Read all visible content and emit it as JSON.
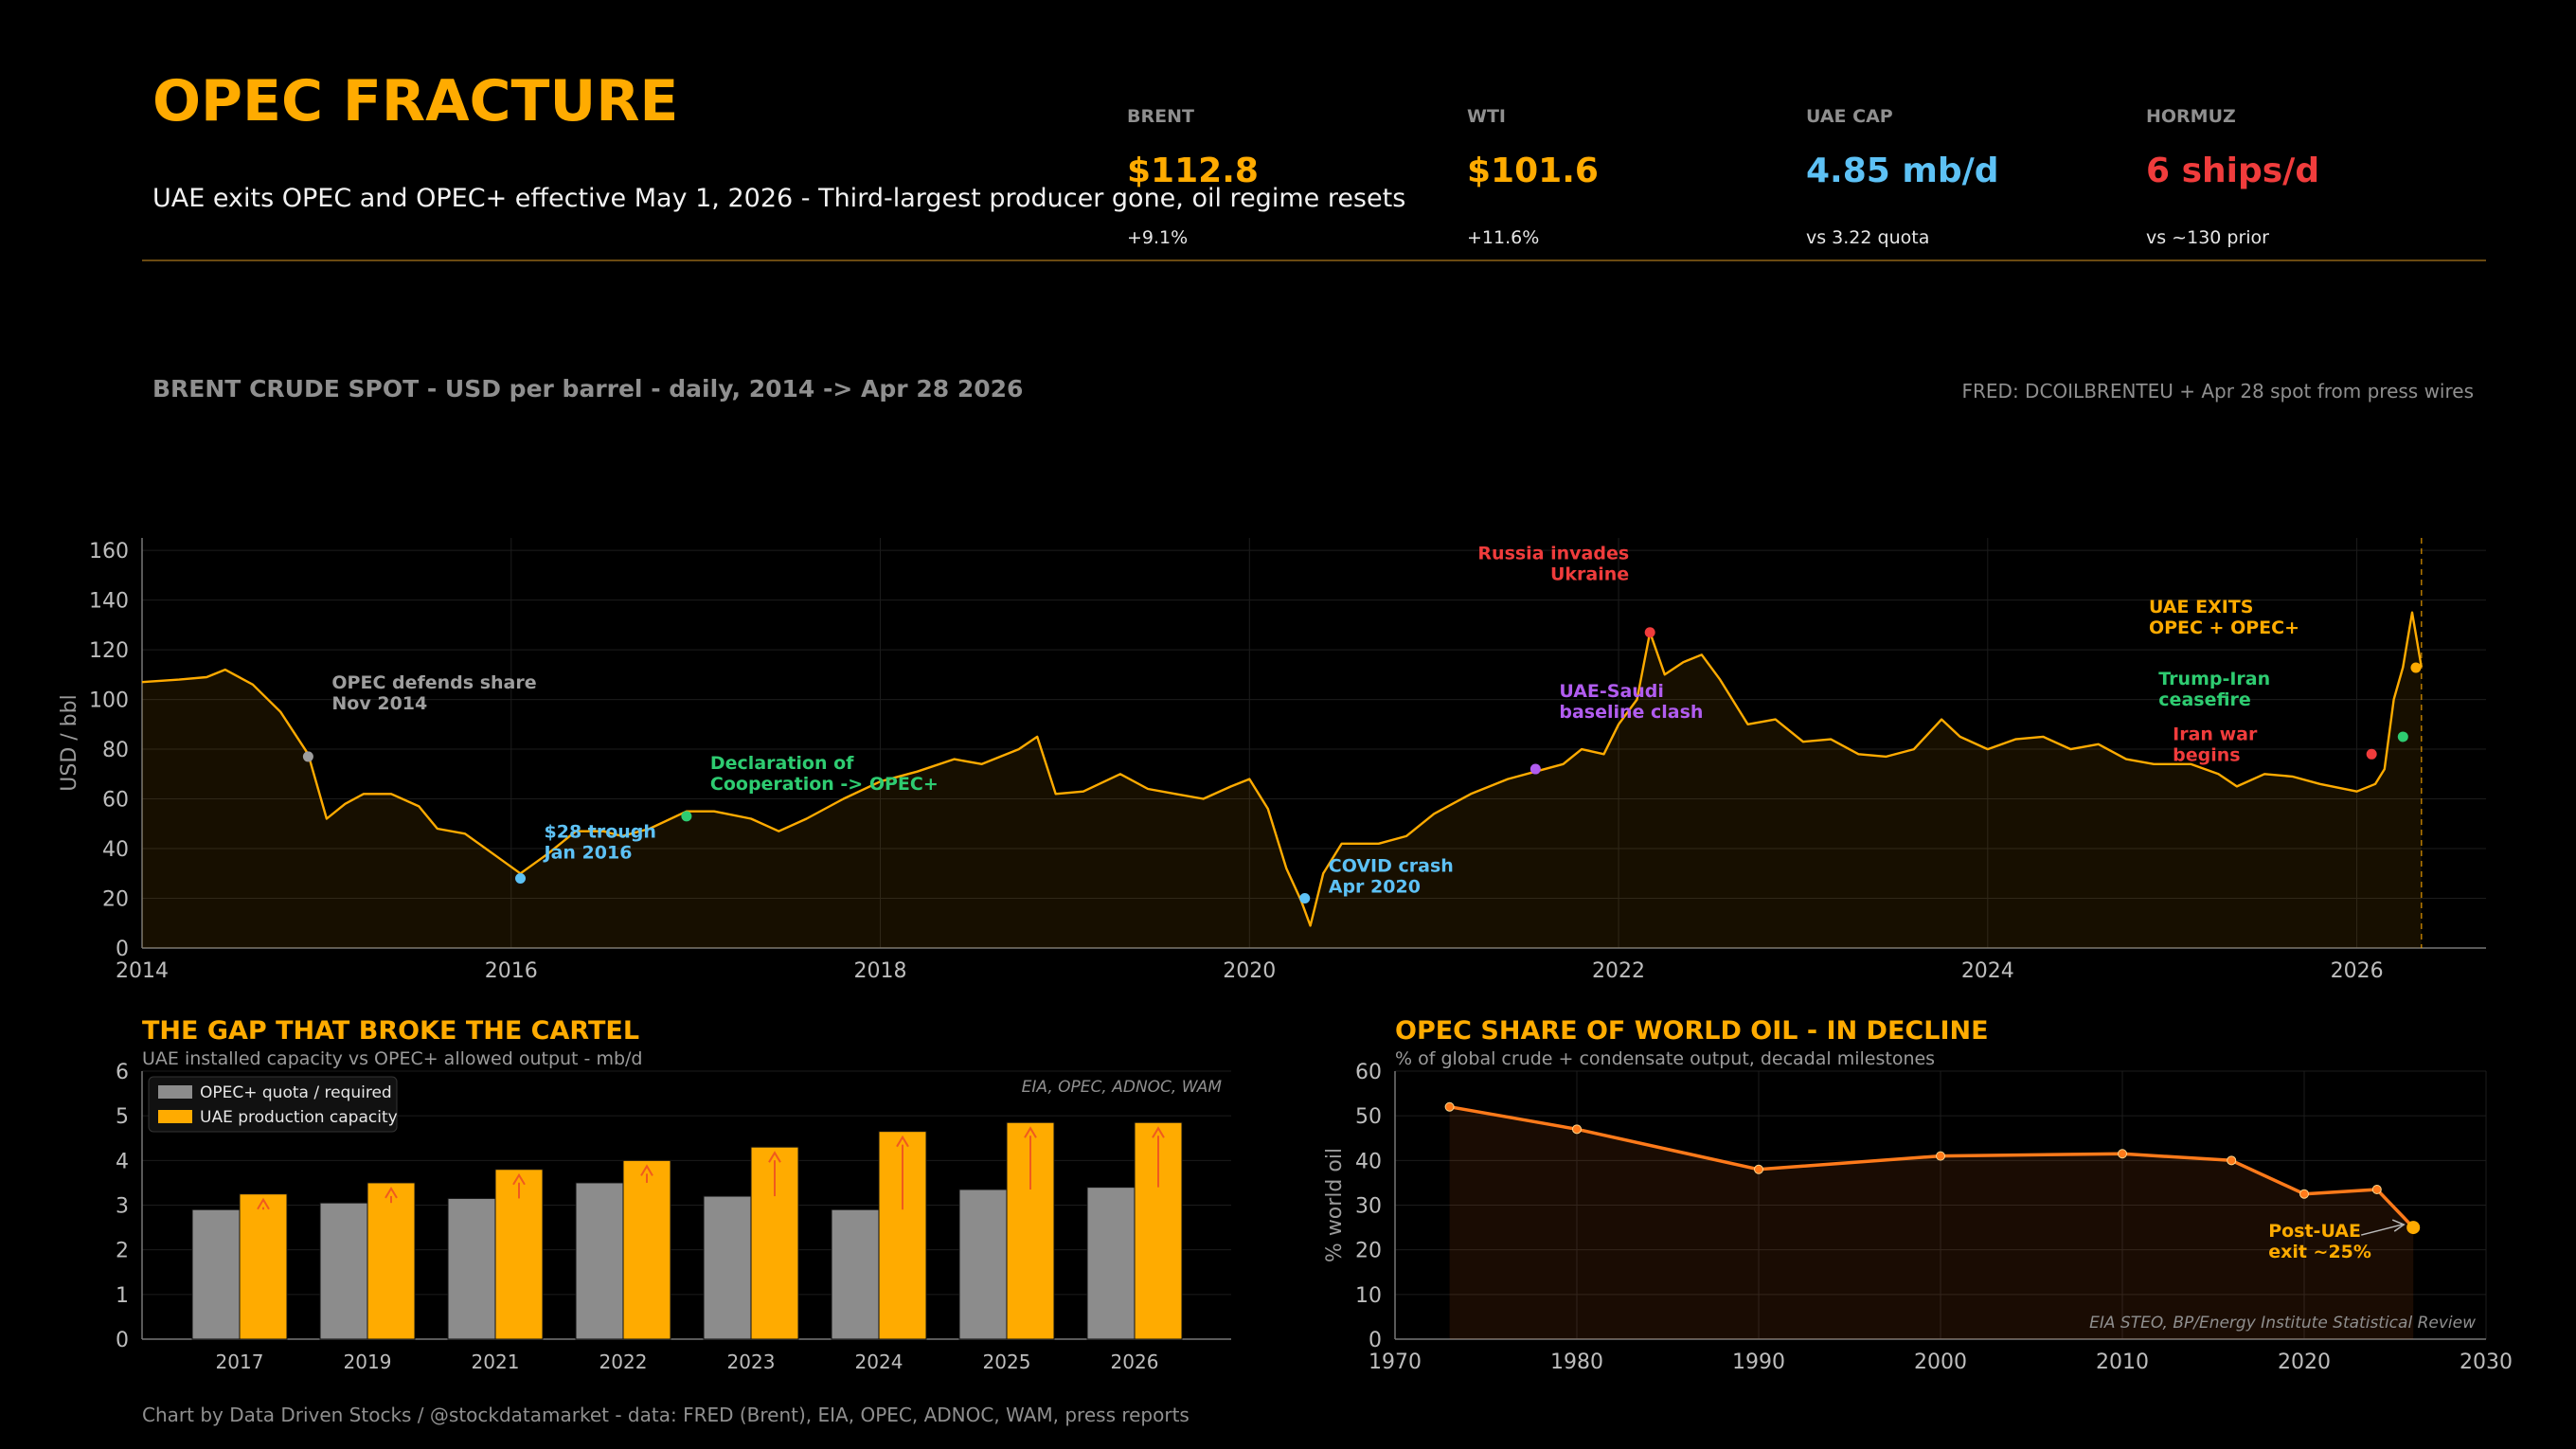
{
  "header": {
    "title": "OPEC FRACTURE",
    "subtitle": "UAE exits OPEC and OPEC+ effective May 1, 2026  -  Third-largest producer gone, oil regime resets"
  },
  "kpis": [
    {
      "label": "BRENT",
      "value": "$112.8",
      "sub": "+9.1%",
      "color": "#FFAB00"
    },
    {
      "label": "WTI",
      "value": "$101.6",
      "sub": "+11.6%",
      "color": "#FFAB00"
    },
    {
      "label": "UAE CAP",
      "value": "4.85 mb/d",
      "sub": "vs 3.22 quota",
      "color": "#5DC1F5"
    },
    {
      "label": "HORMUZ",
      "value": "6 ships/d",
      "sub": "vs ~130 prior",
      "color": "#F03C3C"
    }
  ],
  "section": {
    "title": "BRENT CRUDE SPOT  -  USD per barrel  -  daily, 2014 -> Apr 28 2026",
    "source": "FRED: DCOILBRENTEU  +  Apr 28 spot from press wires"
  },
  "gap_panel": {
    "title": "THE GAP THAT BROKE THE CARTEL",
    "subtitle": "UAE installed capacity vs OPEC+ allowed output  -  mb/d"
  },
  "share_panel": {
    "title": "OPEC SHARE OF WORLD OIL  -  IN DECLINE",
    "subtitle": "% of global crude + condensate output, decadal milestones"
  },
  "footer": "Chart by Data Driven Stocks / @stockdatamarket   -   data: FRED (Brent), EIA, OPEC, ADNOC, WAM, press reports",
  "colors": {
    "accent": "#FFAB00",
    "grey_bar": "#8C8C8C",
    "share_line": "#FF7A1A",
    "up_arrow": "#F05A1E"
  },
  "chart_data": [
    {
      "type": "line",
      "ylabel": "USD / bbl",
      "ylim": [
        0,
        165
      ],
      "xlim": [
        2014.0,
        2026.7
      ],
      "x_ticks": [
        "2014",
        "2016",
        "2018",
        "2020",
        "2022",
        "2024",
        "2026"
      ],
      "y_ticks": [
        "0",
        "20",
        "40",
        "60",
        "80",
        "100",
        "120",
        "140",
        "160"
      ],
      "series": [
        {
          "x": [
            2014.0,
            2014.2,
            2014.35,
            2014.45,
            2014.6,
            2014.75,
            2014.9,
            2015.0,
            2015.1,
            2015.2,
            2015.35,
            2015.5,
            2015.6,
            2015.75,
            2015.9,
            2016.05,
            2016.2,
            2016.35,
            2016.5,
            2016.6,
            2016.75,
            2016.95,
            2017.1,
            2017.3,
            2017.45,
            2017.6,
            2017.8,
            2018.0,
            2018.2,
            2018.4,
            2018.55,
            2018.75,
            2018.85,
            2018.95,
            2019.1,
            2019.3,
            2019.45,
            2019.6,
            2019.75,
            2019.9,
            2020.0,
            2020.1,
            2020.2,
            2020.28,
            2020.33,
            2020.4,
            2020.5,
            2020.7,
            2020.85,
            2021.0,
            2021.2,
            2021.4,
            2021.55,
            2021.7,
            2021.8,
            2021.92,
            2022.0,
            2022.1,
            2022.17,
            2022.25,
            2022.35,
            2022.45,
            2022.55,
            2022.7,
            2022.85,
            2023.0,
            2023.15,
            2023.3,
            2023.45,
            2023.6,
            2023.75,
            2023.85,
            2024.0,
            2024.15,
            2024.3,
            2024.45,
            2024.6,
            2024.75,
            2024.9,
            2025.1,
            2025.25,
            2025.35,
            2025.5,
            2025.65,
            2025.8,
            2026.0,
            2026.1,
            2026.15,
            2026.2,
            2026.25,
            2026.3,
            2026.35
          ],
          "y": [
            107,
            108,
            109,
            112,
            106,
            95,
            78,
            52,
            58,
            62,
            62,
            57,
            48,
            46,
            38,
            30,
            38,
            47,
            47,
            45,
            48,
            55,
            55,
            52,
            47,
            52,
            60,
            67,
            71,
            76,
            74,
            80,
            85,
            62,
            63,
            70,
            64,
            62,
            60,
            65,
            68,
            56,
            32,
            19,
            9,
            30,
            42,
            42,
            45,
            54,
            62,
            68,
            71,
            74,
            80,
            78,
            90,
            100,
            127,
            110,
            115,
            118,
            108,
            90,
            92,
            83,
            84,
            78,
            77,
            80,
            92,
            85,
            80,
            84,
            85,
            80,
            82,
            76,
            74,
            74,
            70,
            65,
            70,
            69,
            66,
            63,
            66,
            72,
            100,
            113,
            135,
            113
          ]
        }
      ],
      "annotations": [
        {
          "x": 2014.9,
          "y": 77,
          "label": "OPEC defends share\nNov 2014",
          "color": "#9E9E9E"
        },
        {
          "x": 2016.05,
          "y": 28,
          "label": "$28 trough\nJan 2016",
          "color": "#5DC1F5"
        },
        {
          "x": 2016.95,
          "y": 53,
          "label": "Declaration of\nCooperation -> OPEC+",
          "color": "#2ECC71"
        },
        {
          "x": 2020.3,
          "y": 20,
          "label": "COVID crash\nApr 2020",
          "color": "#5DC1F5"
        },
        {
          "x": 2021.55,
          "y": 72,
          "label": "UAE-Saudi\nbaseline clash",
          "color": "#B15CF0"
        },
        {
          "x": 2022.17,
          "y": 127,
          "label": "Russia invades\nUkraine",
          "color": "#F03C3C"
        },
        {
          "x": 2026.08,
          "y": 78,
          "label": "Iran war\nbegins",
          "color": "#F03C3C"
        },
        {
          "x": 2026.25,
          "y": 85,
          "label": "Trump-Iran\nceasefire",
          "color": "#2ECC71"
        },
        {
          "x": 2026.32,
          "y": 112.8,
          "label": "UAE EXITS\nOPEC + OPEC+",
          "color": "#FFAB00"
        }
      ]
    },
    {
      "type": "bar",
      "categories": [
        "2017",
        "2019",
        "2021",
        "2022",
        "2023",
        "2024",
        "2025",
        "2026"
      ],
      "series": [
        {
          "name": "OPEC+ quota / required",
          "values": [
            2.9,
            3.05,
            3.15,
            3.5,
            3.2,
            2.9,
            3.35,
            3.4
          ],
          "color": "#8C8C8C"
        },
        {
          "name": "UAE production capacity",
          "values": [
            3.25,
            3.5,
            3.8,
            4.0,
            4.3,
            4.65,
            4.85,
            4.85
          ],
          "color": "#FFAB00"
        }
      ],
      "ylim": [
        0,
        6
      ],
      "y_ticks": [
        "0",
        "1",
        "2",
        "3",
        "4",
        "5",
        "6"
      ],
      "source_note": "EIA, OPEC, ADNOC, WAM",
      "legend_position": "top-left"
    },
    {
      "type": "line",
      "ylabel": "% world oil",
      "x": [
        1973,
        1980,
        1990,
        2000,
        2010,
        2016,
        2020,
        2024,
        2026
      ],
      "y": [
        52,
        47,
        38,
        41,
        41.5,
        40,
        32.5,
        33.5,
        25
      ],
      "xlim": [
        1970,
        2030
      ],
      "ylim": [
        0,
        60
      ],
      "x_ticks": [
        "1970",
        "1980",
        "1990",
        "2000",
        "2010",
        "2020",
        "2030"
      ],
      "y_ticks": [
        "0",
        "10",
        "20",
        "30",
        "40",
        "50",
        "60"
      ],
      "annotation": {
        "x": 2026,
        "y": 25,
        "label": "Post-UAE\nexit ~25%"
      },
      "source_note": "EIA STEO, BP/Energy Institute Statistical Review"
    }
  ]
}
